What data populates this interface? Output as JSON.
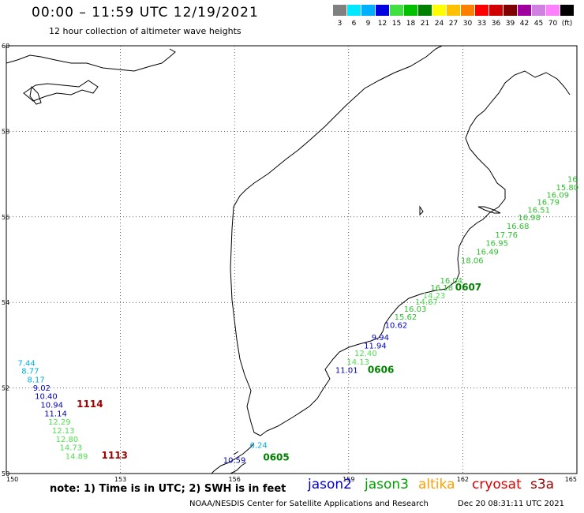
{
  "header": {
    "title": "00:00 – 11:59 UTC 12/19/2021",
    "subtitle": "12 hour collection of altimeter wave heights"
  },
  "legend": {
    "unit": "(ft)",
    "bins": [
      {
        "label": "3",
        "color": "#808080"
      },
      {
        "label": "6",
        "color": "#00e8ff"
      },
      {
        "label": "9",
        "color": "#00b0ff"
      },
      {
        "label": "12",
        "color": "#0000e0"
      },
      {
        "label": "15",
        "color": "#40e040"
      },
      {
        "label": "18",
        "color": "#00c000"
      },
      {
        "label": "21",
        "color": "#008000"
      },
      {
        "label": "24",
        "color": "#ffff00"
      },
      {
        "label": "27",
        "color": "#ffc000"
      },
      {
        "label": "30",
        "color": "#ff8000"
      },
      {
        "label": "33",
        "color": "#ff0000"
      },
      {
        "label": "36",
        "color": "#d00000"
      },
      {
        "label": "39",
        "color": "#800000"
      },
      {
        "label": "42",
        "color": "#a000a0"
      },
      {
        "label": "45",
        "color": "#d080e0"
      },
      {
        "label": "70",
        "color": "#ff80ff"
      },
      {
        "label": "",
        "color": "#000000"
      }
    ]
  },
  "map": {
    "lon_range": [
      150,
      165
    ],
    "lat_range": [
      50,
      60
    ],
    "lon_ticks": [
      "150",
      "153",
      "156",
      "159",
      "162",
      "165"
    ],
    "lat_ticks": [
      "60",
      "58",
      "56",
      "54",
      "52",
      "50"
    ],
    "grid": "dotted"
  },
  "readings": [
    {
      "text": "7.44",
      "lon": 150.3,
      "lat": 52.52,
      "color": "#00b0e0"
    },
    {
      "text": "8.77",
      "lon": 150.4,
      "lat": 52.33,
      "color": "#00b0e0"
    },
    {
      "text": "8.17",
      "lon": 150.55,
      "lat": 52.13,
      "color": "#00b0e0"
    },
    {
      "text": "9.02",
      "lon": 150.7,
      "lat": 51.94,
      "color": "#0000c0"
    },
    {
      "text": "10.40",
      "lon": 150.75,
      "lat": 51.74,
      "color": "#0000c0"
    },
    {
      "text": "10.94",
      "lon": 150.9,
      "lat": 51.54,
      "color": "#0000c0"
    },
    {
      "text": "11.14",
      "lon": 151.0,
      "lat": 51.34,
      "color": "#0000c0"
    },
    {
      "text": "12.29",
      "lon": 151.1,
      "lat": 51.14,
      "color": "#50e050"
    },
    {
      "text": "12.13",
      "lon": 151.2,
      "lat": 50.94,
      "color": "#50e050"
    },
    {
      "text": "12.80",
      "lon": 151.3,
      "lat": 50.74,
      "color": "#50e050"
    },
    {
      "text": "14.73",
      "lon": 151.4,
      "lat": 50.54,
      "color": "#50e050"
    },
    {
      "text": "14.89",
      "lon": 151.55,
      "lat": 50.34,
      "color": "#50e050"
    },
    {
      "text": "10.59",
      "lon": 155.7,
      "lat": 50.25,
      "color": "#0000c0"
    },
    {
      "text": "6.24",
      "lon": 156.4,
      "lat": 50.6,
      "color": "#00b0e0"
    },
    {
      "text": "11.01",
      "lon": 158.65,
      "lat": 52.35,
      "color": "#0000c0"
    },
    {
      "text": "14.13",
      "lon": 158.95,
      "lat": 52.55,
      "color": "#50e050"
    },
    {
      "text": "12.40",
      "lon": 159.15,
      "lat": 52.75,
      "color": "#50e050"
    },
    {
      "text": "11.94",
      "lon": 159.4,
      "lat": 52.92,
      "color": "#0000c0"
    },
    {
      "text": "9.94",
      "lon": 159.6,
      "lat": 53.12,
      "color": "#0000c0"
    },
    {
      "text": "10.62",
      "lon": 159.95,
      "lat": 53.4,
      "color": "#0000c0"
    },
    {
      "text": "15.62",
      "lon": 160.2,
      "lat": 53.6,
      "color": "#30c030"
    },
    {
      "text": "16.03",
      "lon": 160.45,
      "lat": 53.78,
      "color": "#30c030"
    },
    {
      "text": "14.87",
      "lon": 160.75,
      "lat": 53.95,
      "color": "#50e050"
    },
    {
      "text": "14.23",
      "lon": 160.95,
      "lat": 54.1,
      "color": "#50e050"
    },
    {
      "text": "16.18",
      "lon": 161.15,
      "lat": 54.28,
      "color": "#30c030"
    },
    {
      "text": "16.04",
      "lon": 161.4,
      "lat": 54.45,
      "color": "#30c030"
    },
    {
      "text": "18.06",
      "lon": 161.95,
      "lat": 54.92,
      "color": "#30c030"
    },
    {
      "text": "16.49",
      "lon": 162.35,
      "lat": 55.12,
      "color": "#30c030"
    },
    {
      "text": "16.95",
      "lon": 162.6,
      "lat": 55.32,
      "color": "#30c030"
    },
    {
      "text": "17.76",
      "lon": 162.85,
      "lat": 55.52,
      "color": "#30c030"
    },
    {
      "text": "16.68",
      "lon": 163.15,
      "lat": 55.72,
      "color": "#30c030"
    },
    {
      "text": "16.98",
      "lon": 163.45,
      "lat": 55.92,
      "color": "#30c030"
    },
    {
      "text": "16.51",
      "lon": 163.7,
      "lat": 56.1,
      "color": "#30c030"
    },
    {
      "text": "16.79",
      "lon": 163.95,
      "lat": 56.28,
      "color": "#30c030"
    },
    {
      "text": "16.09",
      "lon": 164.2,
      "lat": 56.45,
      "color": "#30c030"
    },
    {
      "text": "15.80",
      "lon": 164.45,
      "lat": 56.62,
      "color": "#30c030"
    },
    {
      "text": "16",
      "lon": 164.75,
      "lat": 56.82,
      "color": "#30c030"
    }
  ],
  "track_times": [
    {
      "text": "1114",
      "lon": 151.85,
      "lat": 51.55,
      "color": "#a00000"
    },
    {
      "text": "1113",
      "lon": 152.5,
      "lat": 50.35,
      "color": "#a00000"
    },
    {
      "text": "0605",
      "lon": 156.75,
      "lat": 50.3,
      "color": "#008000"
    },
    {
      "text": "0606",
      "lon": 159.5,
      "lat": 52.35,
      "color": "#008000"
    },
    {
      "text": "0607",
      "lon": 161.8,
      "lat": 54.28,
      "color": "#008000"
    }
  ],
  "footer": {
    "note": "note: 1) Time is in UTC; 2) SWH is in feet",
    "satellites": [
      {
        "name": "jason2",
        "color": "#0000e0"
      },
      {
        "name": "jason3",
        "color": "#00a000"
      },
      {
        "name": "altika",
        "color": "#ffa000"
      },
      {
        "name": "cryosat",
        "color": "#e00000"
      },
      {
        "name": "s3a",
        "color": "#a00000"
      }
    ],
    "credit": "NOAA/NESDIS Center for Satellite Applications and Research",
    "timestamp": "Dec 20 08:31:11 UTC 2021"
  }
}
